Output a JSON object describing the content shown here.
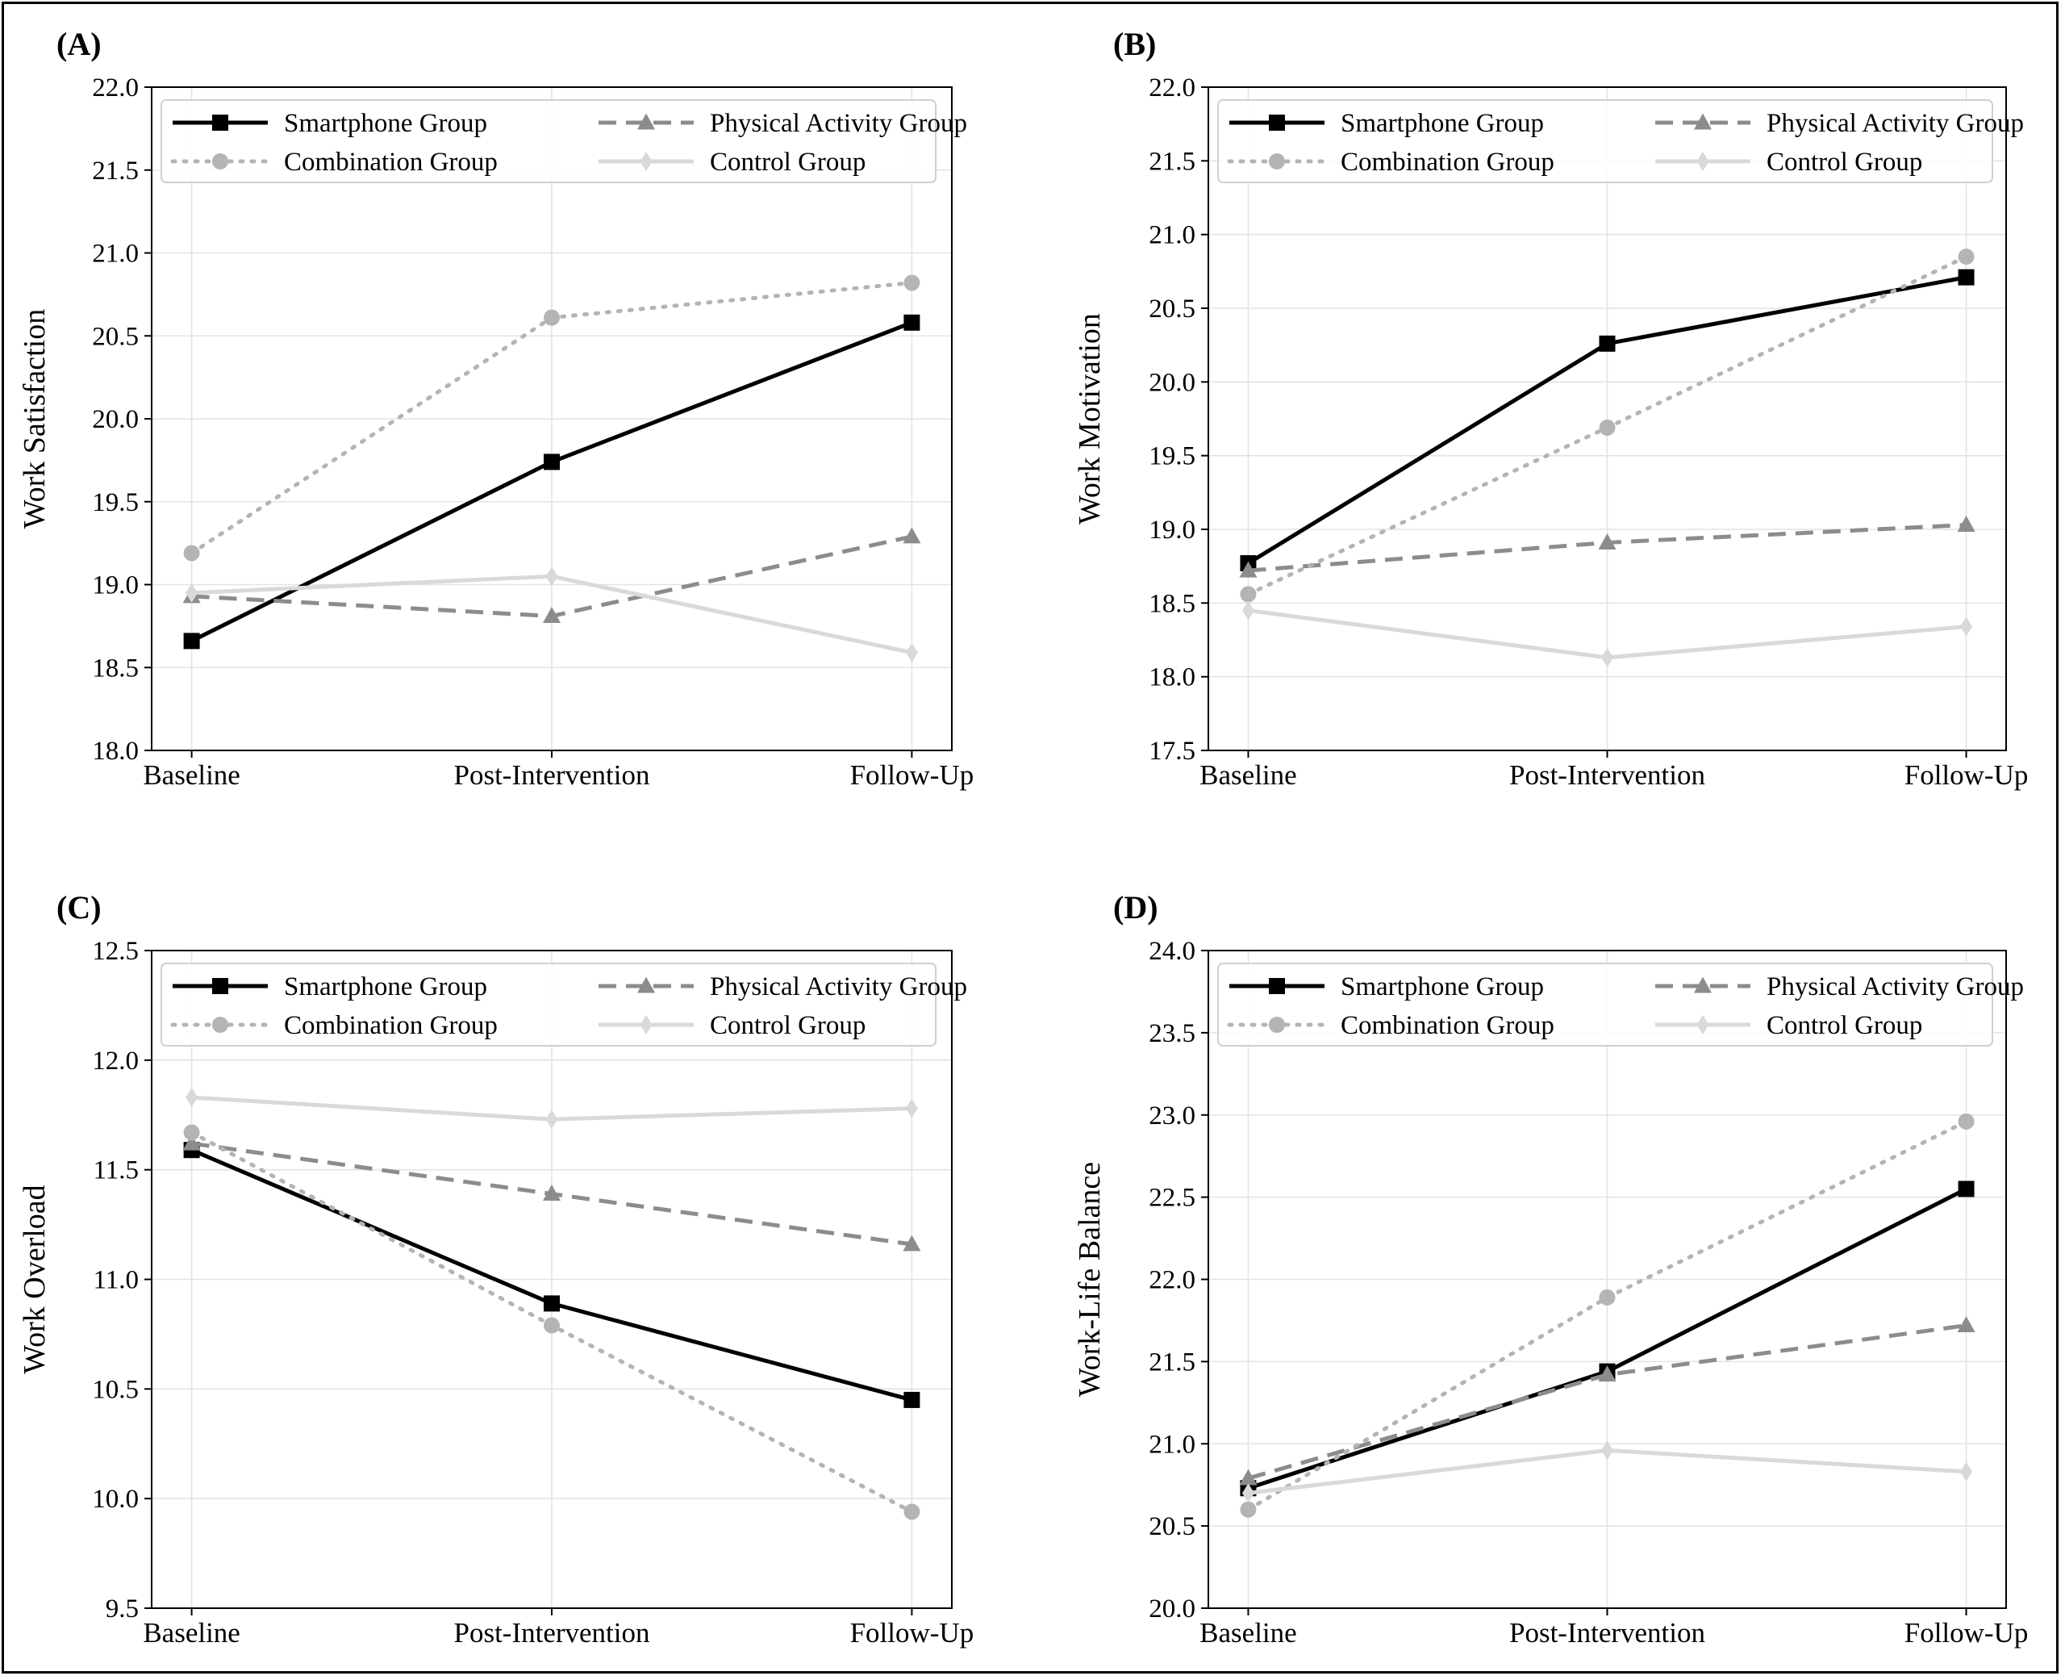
{
  "chart_data": [
    {
      "type": "line",
      "panel_label": "(A)",
      "title": "",
      "xlabel": "",
      "ylabel": "Work Satisfaction",
      "categories": [
        "Baseline",
        "Post-Intervention",
        "Follow-Up"
      ],
      "ylim": [
        18.0,
        22.0
      ],
      "yticks": [
        "18.0",
        "18.5",
        "19.0",
        "19.5",
        "20.0",
        "20.5",
        "21.0",
        "21.5",
        "22.0"
      ],
      "grid": true,
      "legend_position": "top",
      "series": [
        {
          "name": "Smartphone Group",
          "values": [
            18.66,
            19.74,
            20.58
          ],
          "color": "#000000",
          "style": "solid",
          "marker": "square"
        },
        {
          "name": "Physical Activity Group",
          "values": [
            18.93,
            18.81,
            19.29
          ],
          "color": "#8c8c8c",
          "style": "dashed",
          "marker": "triangle"
        },
        {
          "name": "Combination Group",
          "values": [
            19.19,
            20.61,
            20.82
          ],
          "color": "#b4b4b4",
          "style": "dotted",
          "marker": "circle"
        },
        {
          "name": "Control Group",
          "values": [
            18.95,
            19.05,
            18.59
          ],
          "color": "#d9d9d9",
          "style": "solid",
          "marker": "diamond"
        }
      ]
    },
    {
      "type": "line",
      "panel_label": "(B)",
      "title": "",
      "xlabel": "",
      "ylabel": "Work Motivation",
      "categories": [
        "Baseline",
        "Post-Intervention",
        "Follow-Up"
      ],
      "ylim": [
        17.5,
        22.0
      ],
      "yticks": [
        "17.5",
        "18.0",
        "18.5",
        "19.0",
        "19.5",
        "20.0",
        "20.5",
        "21.0",
        "21.5",
        "22.0"
      ],
      "grid": true,
      "legend_position": "top",
      "series": [
        {
          "name": "Smartphone Group",
          "values": [
            18.77,
            20.26,
            20.71
          ],
          "color": "#000000",
          "style": "solid",
          "marker": "square"
        },
        {
          "name": "Physical Activity Group",
          "values": [
            18.72,
            18.91,
            19.03
          ],
          "color": "#8c8c8c",
          "style": "dashed",
          "marker": "triangle"
        },
        {
          "name": "Combination Group",
          "values": [
            18.56,
            19.69,
            20.85
          ],
          "color": "#b4b4b4",
          "style": "dotted",
          "marker": "circle"
        },
        {
          "name": "Control Group",
          "values": [
            18.45,
            18.13,
            18.34
          ],
          "color": "#d9d9d9",
          "style": "solid",
          "marker": "diamond"
        }
      ]
    },
    {
      "type": "line",
      "panel_label": "(C)",
      "title": "",
      "xlabel": "",
      "ylabel": "Work Overload",
      "categories": [
        "Baseline",
        "Post-Intervention",
        "Follow-Up"
      ],
      "ylim": [
        9.5,
        12.5
      ],
      "yticks": [
        "9.5",
        "10.0",
        "10.5",
        "11.0",
        "11.5",
        "12.0",
        "12.5"
      ],
      "grid": true,
      "legend_position": "top",
      "series": [
        {
          "name": "Smartphone Group",
          "values": [
            11.59,
            10.89,
            10.45
          ],
          "color": "#000000",
          "style": "solid",
          "marker": "square"
        },
        {
          "name": "Physical Activity Group",
          "values": [
            11.62,
            11.39,
            11.16
          ],
          "color": "#8c8c8c",
          "style": "dashed",
          "marker": "triangle"
        },
        {
          "name": "Combination Group",
          "values": [
            11.67,
            10.79,
            9.94
          ],
          "color": "#b4b4b4",
          "style": "dotted",
          "marker": "circle"
        },
        {
          "name": "Control Group",
          "values": [
            11.83,
            11.73,
            11.78
          ],
          "color": "#d9d9d9",
          "style": "solid",
          "marker": "diamond"
        }
      ]
    },
    {
      "type": "line",
      "panel_label": "(D)",
      "title": "",
      "xlabel": "",
      "ylabel": "Work-Life Balance",
      "categories": [
        "Baseline",
        "Post-Intervention",
        "Follow-Up"
      ],
      "ylim": [
        20.0,
        24.0
      ],
      "yticks": [
        "20.0",
        "20.5",
        "21.0",
        "21.5",
        "22.0",
        "22.5",
        "23.0",
        "23.5",
        "24.0"
      ],
      "grid": true,
      "legend_position": "top",
      "series": [
        {
          "name": "Smartphone Group",
          "values": [
            20.73,
            21.44,
            22.55
          ],
          "color": "#000000",
          "style": "solid",
          "marker": "square"
        },
        {
          "name": "Physical Activity Group",
          "values": [
            20.79,
            21.42,
            21.72
          ],
          "color": "#8c8c8c",
          "style": "dashed",
          "marker": "triangle"
        },
        {
          "name": "Combination Group",
          "values": [
            20.6,
            21.89,
            22.96
          ],
          "color": "#b4b4b4",
          "style": "dotted",
          "marker": "circle"
        },
        {
          "name": "Control Group",
          "values": [
            20.7,
            20.96,
            20.83
          ],
          "color": "#d9d9d9",
          "style": "solid",
          "marker": "diamond"
        }
      ]
    }
  ]
}
